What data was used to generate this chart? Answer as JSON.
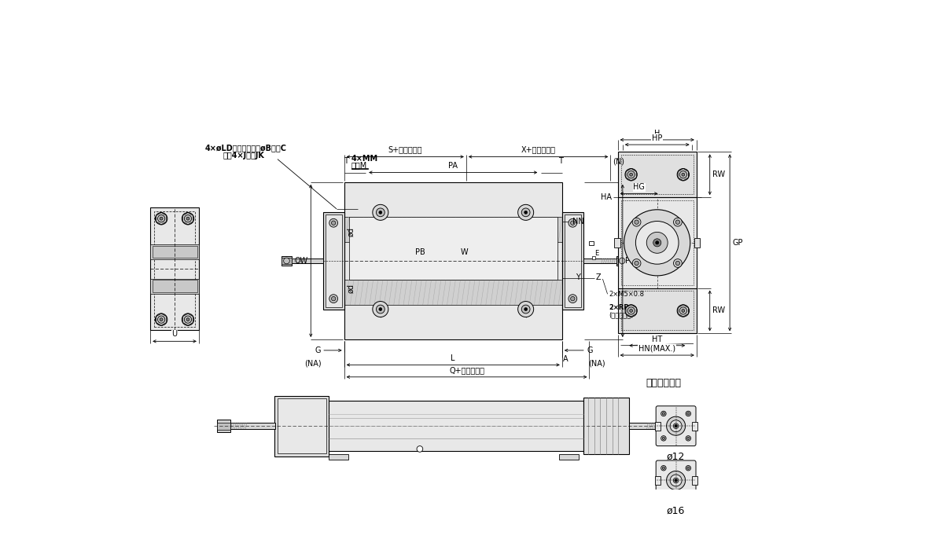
{
  "bg_color": "#ffffff",
  "lc": "#000000",
  "fs": 7,
  "cylinder_label": "シリンダ形状",
  "bore_labels": [
    "ø12",
    "ø16"
  ],
  "ann1": "4×øLD通し、座ぎりøB深さC",
  "ann2": "裏側4×J深さJK",
  "ann_mm": "4×MM",
  "ann_depth": "深さM",
  "dim_S": "S+ストローク",
  "dim_X": "X+ストローク",
  "dim_Q": "Q+ストローク"
}
